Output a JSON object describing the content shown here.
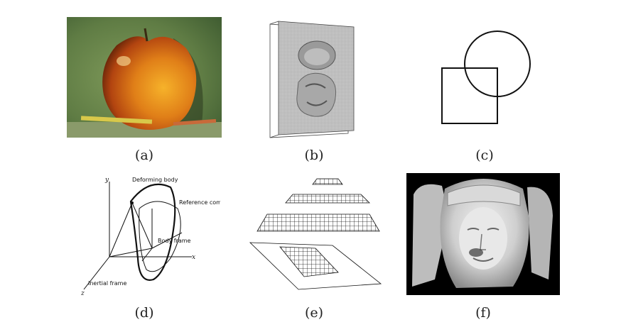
{
  "captions": {
    "a": "(a)",
    "b": "(b)",
    "c": "(c)",
    "d": "(d)",
    "e": "(e)",
    "f": "(f)"
  },
  "panel_d": {
    "deforming_body": "Deforming body",
    "reference_component": "Reference component",
    "body_frame": "Body frame",
    "inertial_frame": "Inertial frame",
    "axis_x": "x",
    "axis_y": "y",
    "axis_z": "z"
  },
  "colors": {
    "apple_bg": "#6c8a4e",
    "apple": "#d8761a",
    "render_bg": "#000000",
    "stone": "#e6e6e6"
  }
}
